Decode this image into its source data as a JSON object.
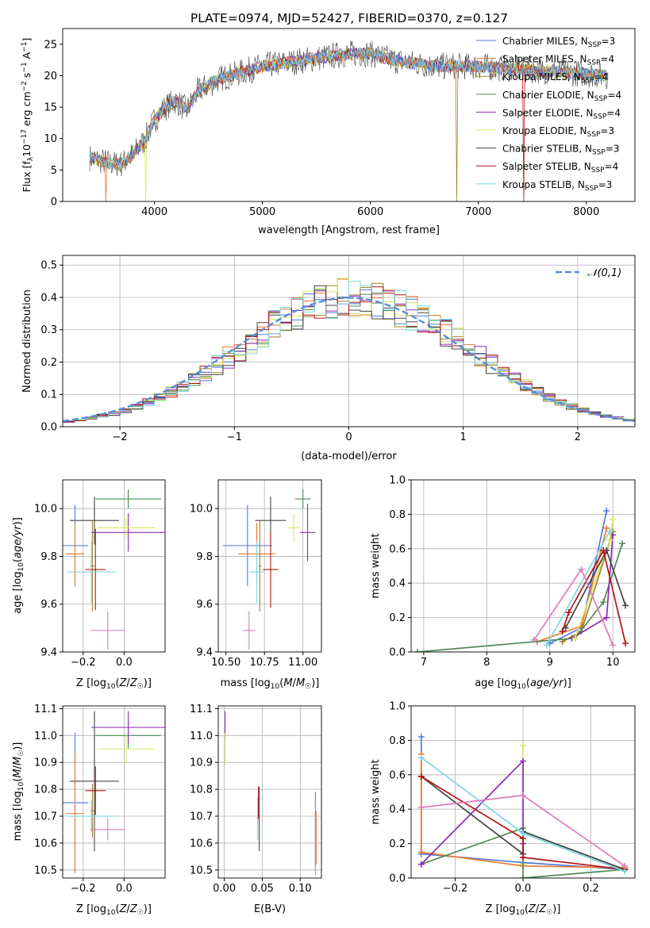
{
  "title": "PLATE=0974, MJD=52427, FIBERID=0370, z=0.127",
  "colors": {
    "Chabrier MILES": "#4e79e0",
    "Salpeter MILES": "#e8782b",
    "Kroupa MILES": "#a0822a",
    "Chabrier ELODIE": "#4f8a56",
    "Salpeter ELODIE": "#8e2bbd",
    "Kroupa ELODIE": "#d8e860",
    "Chabrier STELIB": "#444444",
    "Salpeter STELIB": "#b01515",
    "Kroupa STELIB": "#7fd6e0",
    "pink": "#e07ab8",
    "grid": "#b0b0b0"
  },
  "chart_data": [
    {
      "id": "spectrum",
      "type": "line",
      "xlabel": "wavelength [Angstrom, rest frame]",
      "ylabel": "Flux [f_λ 10^-17 erg cm^-2 s^-1 A^-1]",
      "xlim": [
        3150,
        8450
      ],
      "ylim": [
        0,
        27.5
      ],
      "xticks": [
        4000,
        5000,
        6000,
        7000,
        8000
      ],
      "yticks": [
        0,
        5,
        10,
        15,
        20,
        25
      ],
      "grid": false,
      "legend_position": "right",
      "legend": [
        "Chabrier MILES, N_SSP=3",
        "Salpeter MILES, N_SSP=4",
        "Kroupa MILES, N_SSP=4",
        "Chabrier ELODIE, N_SSP=4",
        "Salpeter ELODIE, N_SSP=4",
        "Kroupa ELODIE, N_SSP=3",
        "Chabrier STELIB, N_SSP=3",
        "Salpeter STELIB, N_SSP=4",
        "Kroupa STELIB, N_SSP=3"
      ],
      "continuum": {
        "x": [
          3400,
          3600,
          3700,
          3800,
          3900,
          4000,
          4100,
          4200,
          4300,
          4400,
          4600,
          4800,
          5000,
          5200,
          5400,
          5600,
          5800,
          6000,
          6200,
          6400,
          6600,
          6800,
          7000,
          7200,
          7400,
          7600,
          7800,
          8000,
          8200
        ],
        "y": [
          7,
          6,
          6,
          7.5,
          9.5,
          13,
          15,
          16,
          14.5,
          17.5,
          19.5,
          20.5,
          21.5,
          22,
          22.5,
          23,
          23.5,
          23.5,
          22.5,
          22,
          21.5,
          21.5,
          21.5,
          21.2,
          21,
          20.8,
          20.5,
          20.3,
          20
        ]
      },
      "drops": [
        {
          "series": "Salpeter MILES",
          "x": 3550
        },
        {
          "series": "Kroupa ELODIE",
          "x": 3920
        },
        {
          "series": "Kroupa MILES",
          "x": 6800
        },
        {
          "series": "Salpeter STELIB",
          "x": 7420
        }
      ]
    },
    {
      "id": "residuals",
      "type": "histogram",
      "xlabel": "(data-model)/error",
      "ylabel": "Normed distribution",
      "xlim": [
        -2.5,
        2.5
      ],
      "ylim": [
        0,
        0.53
      ],
      "xticks": [
        -2,
        -1,
        0,
        1,
        2
      ],
      "yticks": [
        0.0,
        0.1,
        0.2,
        0.3,
        0.4,
        0.5
      ],
      "grid": true,
      "legend": [
        "𝒩(0,1)"
      ],
      "legend_position": "top-right",
      "reference": {
        "name": "𝒩(0,1)",
        "mean": 0,
        "sigma": 1
      },
      "bins": {
        "start": -2.5,
        "width": 0.1,
        "count": 50
      }
    },
    {
      "id": "age-vs-Z",
      "type": "errorbar",
      "xlabel": "Z [log10(Z/Z☉)]",
      "ylabel": "age [log10(age/yr)]",
      "xlim": [
        -0.3,
        0.2
      ],
      "ylim": [
        9.4,
        10.12
      ],
      "xticks": [
        -0.2,
        0.0
      ],
      "yticks": [
        9.4,
        9.6,
        9.8,
        10.0
      ],
      "grid": true,
      "points": [
        {
          "c": "Chabrier MILES",
          "x": -0.24,
          "xerr": 0.065,
          "y": 9.845,
          "yerr": 0.17
        },
        {
          "c": "Salpeter MILES",
          "x": -0.24,
          "xerr": 0.045,
          "y": 9.81,
          "yerr": 0.13
        },
        {
          "c": "Kroupa MILES",
          "x": -0.155,
          "xerr": 0.01,
          "y": 9.76,
          "yerr": 0.19
        },
        {
          "c": "Chabrier ELODIE",
          "x": 0.02,
          "xerr": 0.16,
          "y": 10.04,
          "yerr": 0.04
        },
        {
          "c": "Salpeter ELODIE",
          "x": 0.02,
          "xerr": 0.18,
          "y": 9.9,
          "yerr": 0.08
        },
        {
          "c": "Kroupa ELODIE",
          "x": 0.01,
          "xerr": 0.14,
          "y": 9.92,
          "yerr": 0.04
        },
        {
          "c": "Chabrier STELIB",
          "x": -0.145,
          "xerr": 0.12,
          "y": 9.95,
          "yerr": 0.1
        },
        {
          "c": "Salpeter STELIB",
          "x": -0.14,
          "xerr": 0.05,
          "y": 9.745,
          "yerr": 0.17
        },
        {
          "c": "Kroupa STELIB",
          "x": -0.16,
          "xerr": 0.12,
          "y": 9.735,
          "yerr": 0.13
        },
        {
          "c": "pink",
          "x": -0.08,
          "xerr": 0.085,
          "y": 9.49,
          "yerr": 0.08
        }
      ]
    },
    {
      "id": "age-vs-mass",
      "type": "errorbar",
      "xlabel": "mass [log10(M/M☉)]",
      "ylabel": "",
      "xlim": [
        10.45,
        11.12
      ],
      "ylim": [
        9.4,
        10.12
      ],
      "xticks": [
        10.5,
        10.75,
        11.0
      ],
      "yticks": [
        9.4,
        9.6,
        9.8,
        10.0
      ],
      "grid": true,
      "points": [
        {
          "c": "Chabrier MILES",
          "x": 10.64,
          "xerr": 0.16,
          "y": 9.845,
          "yerr": 0.17
        },
        {
          "c": "Salpeter MILES",
          "x": 10.7,
          "xerr": 0.12,
          "y": 9.81,
          "yerr": 0.13
        },
        {
          "c": "Kroupa MILES",
          "x": 10.72,
          "xerr": 0.01,
          "y": 9.76,
          "yerr": 0.19
        },
        {
          "c": "Chabrier ELODIE",
          "x": 11.0,
          "xerr": 0.05,
          "y": 10.04,
          "yerr": 0.04
        },
        {
          "c": "Salpeter ELODIE",
          "x": 11.03,
          "xerr": 0.05,
          "y": 9.9,
          "yerr": 0.12
        },
        {
          "c": "Kroupa ELODIE",
          "x": 10.94,
          "xerr": 0.04,
          "y": 9.92,
          "yerr": 0.06
        },
        {
          "c": "Chabrier STELIB",
          "x": 10.79,
          "xerr": 0.1,
          "y": 9.95,
          "yerr": 0.1
        },
        {
          "c": "Salpeter STELIB",
          "x": 10.79,
          "xerr": 0.05,
          "y": 9.745,
          "yerr": 0.16
        },
        {
          "c": "Kroupa STELIB",
          "x": 10.7,
          "xerr": 0.05,
          "y": 9.735,
          "yerr": 0.13
        },
        {
          "c": "pink",
          "x": 10.65,
          "xerr": 0.04,
          "y": 9.49,
          "yerr": 0.08
        }
      ]
    },
    {
      "id": "weight-vs-age",
      "type": "line",
      "xlabel": "age [log10(age/yr)]",
      "ylabel": "mass weight",
      "xlim": [
        6.8,
        10.35
      ],
      "ylim": [
        0,
        1.0
      ],
      "xticks": [
        7,
        8,
        9,
        10
      ],
      "yticks": [
        0.0,
        0.2,
        0.4,
        0.6,
        0.8,
        1.0
      ],
      "grid": true,
      "series": [
        {
          "c": "Chabrier MILES",
          "x": [
            9.0,
            9.5,
            9.9
          ],
          "y": [
            0.05,
            0.14,
            0.82
          ]
        },
        {
          "c": "Salpeter MILES",
          "x": [
            8.8,
            9.5,
            9.9
          ],
          "y": [
            0.06,
            0.15,
            0.72
          ]
        },
        {
          "c": "Kroupa MILES",
          "x": [
            9.2,
            9.5,
            10.0
          ],
          "y": [
            0.06,
            0.12,
            0.7
          ]
        },
        {
          "c": "Chabrier ELODIE",
          "x": [
            6.9,
            9.4,
            9.85,
            10.15
          ],
          "y": [
            0.0,
            0.08,
            0.29,
            0.63
          ]
        },
        {
          "c": "Salpeter ELODIE",
          "x": [
            9.35,
            9.9,
            10.0
          ],
          "y": [
            0.08,
            0.2,
            0.68
          ]
        },
        {
          "c": "Kroupa ELODIE",
          "x": [
            9.4,
            9.95,
            10.0
          ],
          "y": [
            0.08,
            0.65,
            0.77
          ]
        },
        {
          "c": "Chabrier STELIB",
          "x": [
            9.25,
            9.9,
            10.2
          ],
          "y": [
            0.14,
            0.59,
            0.27
          ]
        },
        {
          "c": "Salpeter STELIB",
          "x": [
            9.2,
            9.3,
            9.85,
            10.2
          ],
          "y": [
            0.12,
            0.23,
            0.59,
            0.05
          ]
        },
        {
          "c": "Kroupa STELIB",
          "x": [
            8.95,
            9.95
          ],
          "y": [
            0.04,
            0.7
          ]
        },
        {
          "c": "pink",
          "x": [
            8.75,
            9.5,
            10.0
          ],
          "y": [
            0.07,
            0.48,
            0.04
          ]
        }
      ]
    },
    {
      "id": "mass-vs-Z",
      "type": "errorbar",
      "xlabel": "Z [log10(Z/Z☉)]",
      "ylabel": "mass [log10(M/M☉)]",
      "xlim": [
        -0.3,
        0.2
      ],
      "ylim": [
        10.47,
        11.11
      ],
      "xticks": [
        -0.2,
        0.0
      ],
      "yticks": [
        10.5,
        10.6,
        10.7,
        10.8,
        10.9,
        11.0,
        11.1
      ],
      "grid": true,
      "points": [
        {
          "c": "Chabrier MILES",
          "x": -0.24,
          "xerr": 0.065,
          "y": 10.75,
          "yerr": 0.26
        },
        {
          "c": "Salpeter MILES",
          "x": -0.24,
          "xerr": 0.045,
          "y": 10.71,
          "yerr": 0.22
        },
        {
          "c": "Kroupa MILES",
          "x": -0.155,
          "xerr": 0.01,
          "y": 10.72,
          "yerr": 0.1
        },
        {
          "c": "Chabrier ELODIE",
          "x": 0.02,
          "xerr": 0.16,
          "y": 11.0,
          "yerr": 0.05
        },
        {
          "c": "Salpeter ELODIE",
          "x": 0.02,
          "xerr": 0.18,
          "y": 11.03,
          "yerr": 0.06
        },
        {
          "c": "Kroupa ELODIE",
          "x": 0.01,
          "xerr": 0.14,
          "y": 10.95,
          "yerr": 0.05
        },
        {
          "c": "Chabrier STELIB",
          "x": -0.145,
          "xerr": 0.12,
          "y": 10.83,
          "yerr": 0.26
        },
        {
          "c": "Salpeter STELIB",
          "x": -0.14,
          "xerr": 0.05,
          "y": 10.795,
          "yerr": 0.09
        },
        {
          "c": "Kroupa STELIB",
          "x": -0.16,
          "xerr": 0.12,
          "y": 10.7,
          "yerr": 0.06
        },
        {
          "c": "pink",
          "x": -0.08,
          "xerr": 0.085,
          "y": 10.65,
          "yerr": 0.04
        }
      ]
    },
    {
      "id": "mass-vs-EBV",
      "type": "errorbar",
      "xlabel": "E(B-V)",
      "ylabel": "",
      "xlim": [
        -0.008,
        0.128
      ],
      "ylim": [
        10.47,
        11.11
      ],
      "xticks": [
        0.0,
        0.05,
        0.1
      ],
      "yticks": [
        10.5,
        10.6,
        10.7,
        10.8,
        10.9,
        11.0,
        11.1
      ],
      "grid": true,
      "points": [
        {
          "c": "Salpeter ELODIE",
          "x": 0.001,
          "xerr": 0,
          "y": 11.04,
          "yerr": 0.05
        },
        {
          "c": "Kroupa ELODIE",
          "x": 0.001,
          "xerr": 0,
          "y": 10.95,
          "yerr": 0.06
        },
        {
          "c": "Kroupa STELIB",
          "x": 0.044,
          "xerr": 0,
          "y": 10.69,
          "yerr": 0.08
        },
        {
          "c": "Chabrier STELIB",
          "x": 0.046,
          "xerr": 0,
          "y": 10.69,
          "yerr": 0.12
        },
        {
          "c": "Salpeter STELIB",
          "x": 0.045,
          "xerr": 0,
          "y": 10.75,
          "yerr": 0.06
        },
        {
          "c": "Chabrier MILES",
          "x": 0.12,
          "xerr": 0,
          "y": 10.65,
          "yerr": 0.14
        },
        {
          "c": "Salpeter MILES",
          "x": 0.121,
          "xerr": 0,
          "y": 10.62,
          "yerr": 0.1
        },
        {
          "c": "pink",
          "x": 0.12,
          "xerr": 0,
          "y": 10.62,
          "yerr": 0.14
        }
      ]
    },
    {
      "id": "weight-vs-Z",
      "type": "line",
      "xlabel": "Z [log10(Z/Z☉)]",
      "ylabel": "mass weight",
      "xlim": [
        -0.33,
        0.33
      ],
      "ylim": [
        0,
        1.0
      ],
      "xticks": [
        -0.2,
        0.0,
        0.2
      ],
      "yticks": [
        0.0,
        0.2,
        0.4,
        0.6,
        0.8,
        1.0
      ],
      "grid": true,
      "series": [
        {
          "c": "Chabrier MILES",
          "x": [
            -0.3,
            -0.3,
            0.0,
            0.3
          ],
          "y": [
            0.82,
            0.14,
            0.09,
            0.05
          ]
        },
        {
          "c": "Salpeter MILES",
          "x": [
            -0.3,
            -0.3,
            0.0,
            0.3
          ],
          "y": [
            0.72,
            0.15,
            0.07,
            0.06
          ]
        },
        {
          "c": "Kroupa ELODIE",
          "x": [
            0.0,
            0.0
          ],
          "y": [
            0.77,
            0.08
          ]
        },
        {
          "c": "Chabrier ELODIE",
          "x": [
            -0.3,
            0.0,
            0.0,
            0.3
          ],
          "y": [
            0.08,
            0.29,
            0.0,
            0.05
          ]
        },
        {
          "c": "Salpeter ELODIE",
          "x": [
            -0.3,
            0.0,
            0.0
          ],
          "y": [
            0.08,
            0.68,
            0.2
          ]
        },
        {
          "c": "Chabrier STELIB",
          "x": [
            -0.3,
            0.0,
            0.0,
            0.3
          ],
          "y": [
            0.59,
            0.14,
            0.27,
            0.05
          ]
        },
        {
          "c": "Salpeter STELIB",
          "x": [
            -0.3,
            0.0,
            0.0,
            0.3
          ],
          "y": [
            0.59,
            0.23,
            0.12,
            0.05
          ]
        },
        {
          "c": "Kroupa STELIB",
          "x": [
            -0.3,
            0.0,
            0.3
          ],
          "y": [
            0.7,
            0.26,
            0.04
          ]
        },
        {
          "c": "pink",
          "x": [
            -0.3,
            0.0,
            0.3
          ],
          "y": [
            0.41,
            0.48,
            0.07
          ]
        }
      ]
    }
  ]
}
